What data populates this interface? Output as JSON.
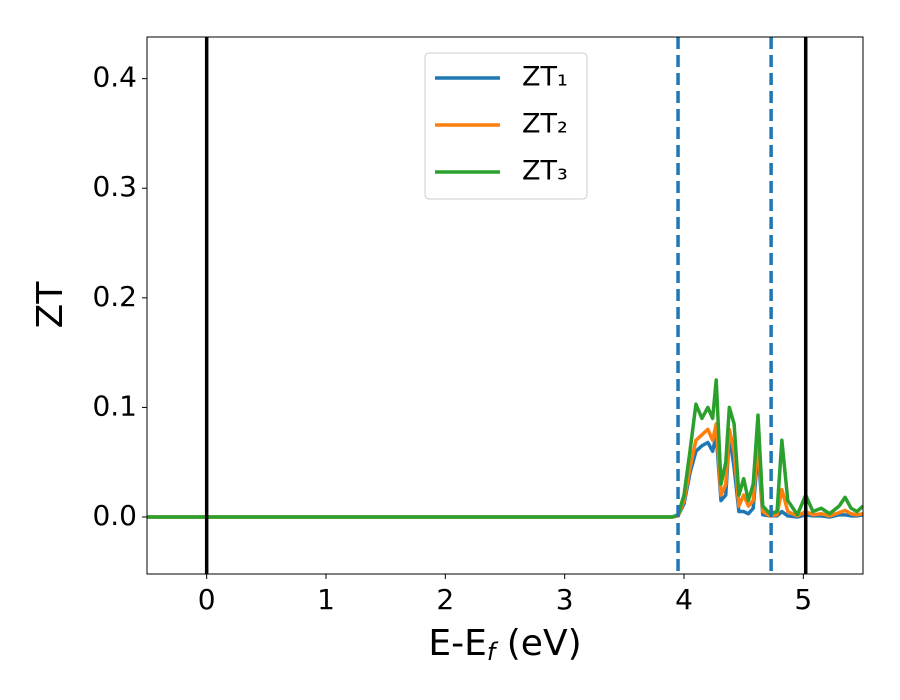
{
  "chart_data": {
    "type": "line",
    "y_label": "ZT",
    "x_label": [
      "E-E",
      "f",
      " (eV)"
    ],
    "x": [
      -0.5,
      3.9,
      3.95,
      4.0,
      4.05,
      4.1,
      4.15,
      4.2,
      4.24,
      4.27,
      4.31,
      4.35,
      4.38,
      4.42,
      4.46,
      4.5,
      4.54,
      4.58,
      4.62,
      4.66,
      4.72,
      4.78,
      4.82,
      4.87,
      4.95,
      5.02,
      5.08,
      5.15,
      5.22,
      5.3,
      5.35,
      5.4,
      5.45,
      5.5
    ],
    "series": [
      {
        "name": "ZT₁",
        "color": "#1f77b4",
        "values": [
          0,
          0,
          0.001,
          0.012,
          0.04,
          0.06,
          0.065,
          0.068,
          0.06,
          0.075,
          0.015,
          0.02,
          0.075,
          0.045,
          0.005,
          0.005,
          0.003,
          0.008,
          0.06,
          0.002,
          0.001,
          0.001,
          0.005,
          0.001,
          0,
          0.002,
          0.001,
          0.001,
          0,
          0.002,
          0.002,
          0.001,
          0.001,
          0.002
        ]
      },
      {
        "name": "ZT₂",
        "color": "#ff7f0e",
        "values": [
          0,
          0,
          0.001,
          0.015,
          0.045,
          0.07,
          0.075,
          0.08,
          0.07,
          0.085,
          0.02,
          0.03,
          0.08,
          0.06,
          0.01,
          0.02,
          0.01,
          0.015,
          0.07,
          0.005,
          0.001,
          0.002,
          0.025,
          0.005,
          0.001,
          0.005,
          0.002,
          0.003,
          0.001,
          0.004,
          0.006,
          0.003,
          0.002,
          0.003
        ]
      },
      {
        "name": "ZT₃",
        "color": "#2ca02c",
        "values": [
          0,
          0,
          0.002,
          0.02,
          0.06,
          0.103,
          0.09,
          0.1,
          0.09,
          0.125,
          0.03,
          0.05,
          0.1,
          0.085,
          0.02,
          0.035,
          0.015,
          0.03,
          0.093,
          0.01,
          0.003,
          0.005,
          0.07,
          0.015,
          0.002,
          0.02,
          0.005,
          0.008,
          0.003,
          0.01,
          0.018,
          0.008,
          0.005,
          0.01
        ]
      }
    ],
    "vlines": [
      {
        "x": 0,
        "color": "#000000",
        "style": "solid"
      },
      {
        "x": 3.95,
        "color": "#1f77b4",
        "style": "dashed"
      },
      {
        "x": 4.73,
        "color": "#1f77b4",
        "style": "dashed"
      },
      {
        "x": 5.02,
        "color": "#000000",
        "style": "solid"
      }
    ],
    "xlim": [
      -0.5,
      5.5
    ],
    "ylim": [
      -0.052,
      0.438
    ],
    "xticks": [
      0,
      1,
      2,
      3,
      4,
      5
    ],
    "yticks": [
      {
        "value": 0,
        "label": "0.0"
      },
      {
        "value": 0.1,
        "label": "0.1"
      },
      {
        "value": 0.2,
        "label": "0.2"
      },
      {
        "value": 0.3,
        "label": "0.3"
      },
      {
        "value": 0.4,
        "label": "0.4"
      }
    ],
    "legend": "upper center",
    "grid": false
  }
}
